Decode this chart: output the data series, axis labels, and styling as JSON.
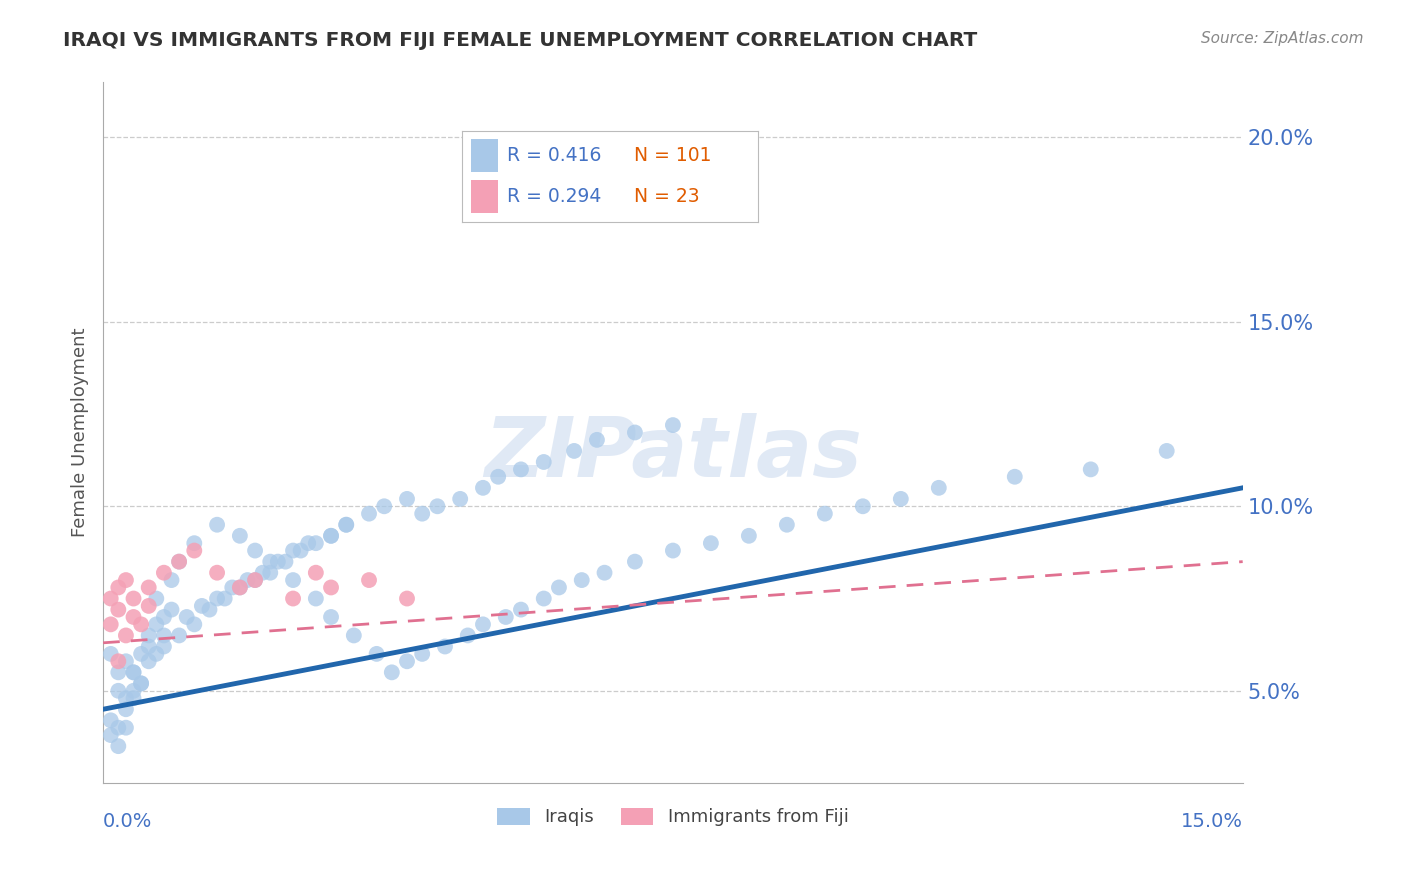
{
  "title": "IRAQI VS IMMIGRANTS FROM FIJI FEMALE UNEMPLOYMENT CORRELATION CHART",
  "source": "Source: ZipAtlas.com",
  "ylabel": "Female Unemployment",
  "watermark": "ZIPatlas",
  "iraqis_R": 0.416,
  "iraqis_N": 101,
  "fiji_R": 0.294,
  "fiji_N": 23,
  "xlim": [
    0.0,
    0.15
  ],
  "ylim": [
    0.025,
    0.215
  ],
  "ytick_vals": [
    0.05,
    0.1,
    0.15,
    0.2
  ],
  "ytick_labels": [
    "5.0%",
    "10.0%",
    "15.0%",
    "20.0%"
  ],
  "blue_scatter_color": "#a8c8e8",
  "pink_scatter_color": "#f4a0b5",
  "blue_line_color": "#2166ac",
  "pink_line_color": "#e07090",
  "title_color": "#333333",
  "axis_label_color": "#4472c4",
  "n_color": "#e05c00",
  "grid_color": "#cccccc",
  "background_color": "#ffffff",
  "iraqis_x": [
    0.002,
    0.003,
    0.001,
    0.004,
    0.002,
    0.005,
    0.003,
    0.001,
    0.006,
    0.002,
    0.008,
    0.004,
    0.003,
    0.007,
    0.005,
    0.002,
    0.009,
    0.006,
    0.004,
    0.001,
    0.01,
    0.008,
    0.005,
    0.003,
    0.012,
    0.007,
    0.004,
    0.015,
    0.009,
    0.006,
    0.018,
    0.011,
    0.007,
    0.02,
    0.013,
    0.008,
    0.022,
    0.015,
    0.01,
    0.025,
    0.017,
    0.012,
    0.028,
    0.019,
    0.014,
    0.03,
    0.021,
    0.016,
    0.033,
    0.023,
    0.018,
    0.036,
    0.025,
    0.02,
    0.038,
    0.027,
    0.022,
    0.04,
    0.03,
    0.024,
    0.042,
    0.032,
    0.026,
    0.045,
    0.035,
    0.028,
    0.048,
    0.037,
    0.03,
    0.05,
    0.04,
    0.032,
    0.053,
    0.042,
    0.055,
    0.044,
    0.058,
    0.047,
    0.06,
    0.05,
    0.063,
    0.052,
    0.066,
    0.055,
    0.07,
    0.058,
    0.075,
    0.062,
    0.08,
    0.065,
    0.085,
    0.07,
    0.09,
    0.075,
    0.095,
    0.1,
    0.105,
    0.11,
    0.12,
    0.13,
    0.14
  ],
  "iraqis_y": [
    0.05,
    0.045,
    0.06,
    0.048,
    0.055,
    0.052,
    0.058,
    0.042,
    0.065,
    0.04,
    0.07,
    0.055,
    0.048,
    0.075,
    0.06,
    0.035,
    0.08,
    0.062,
    0.05,
    0.038,
    0.085,
    0.065,
    0.052,
    0.04,
    0.09,
    0.068,
    0.055,
    0.095,
    0.072,
    0.058,
    0.092,
    0.07,
    0.06,
    0.088,
    0.073,
    0.062,
    0.085,
    0.075,
    0.065,
    0.08,
    0.078,
    0.068,
    0.075,
    0.08,
    0.072,
    0.07,
    0.082,
    0.075,
    0.065,
    0.085,
    0.078,
    0.06,
    0.088,
    0.08,
    0.055,
    0.09,
    0.082,
    0.058,
    0.092,
    0.085,
    0.06,
    0.095,
    0.088,
    0.062,
    0.098,
    0.09,
    0.065,
    0.1,
    0.092,
    0.068,
    0.102,
    0.095,
    0.07,
    0.098,
    0.072,
    0.1,
    0.075,
    0.102,
    0.078,
    0.105,
    0.08,
    0.108,
    0.082,
    0.11,
    0.085,
    0.112,
    0.088,
    0.115,
    0.09,
    0.118,
    0.092,
    0.12,
    0.095,
    0.122,
    0.098,
    0.1,
    0.102,
    0.105,
    0.108,
    0.11,
    0.115
  ],
  "fiji_x": [
    0.001,
    0.002,
    0.003,
    0.001,
    0.004,
    0.002,
    0.005,
    0.003,
    0.006,
    0.002,
    0.008,
    0.004,
    0.01,
    0.006,
    0.012,
    0.015,
    0.018,
    0.02,
    0.025,
    0.028,
    0.03,
    0.035,
    0.04
  ],
  "fiji_y": [
    0.068,
    0.072,
    0.065,
    0.075,
    0.07,
    0.078,
    0.068,
    0.08,
    0.073,
    0.058,
    0.082,
    0.075,
    0.085,
    0.078,
    0.088,
    0.082,
    0.078,
    0.08,
    0.075,
    0.082,
    0.078,
    0.08,
    0.075
  ],
  "blue_line_x": [
    0.0,
    0.15
  ],
  "blue_line_y": [
    0.045,
    0.105
  ],
  "pink_line_x": [
    0.0,
    0.15
  ],
  "pink_line_y": [
    0.063,
    0.085
  ]
}
